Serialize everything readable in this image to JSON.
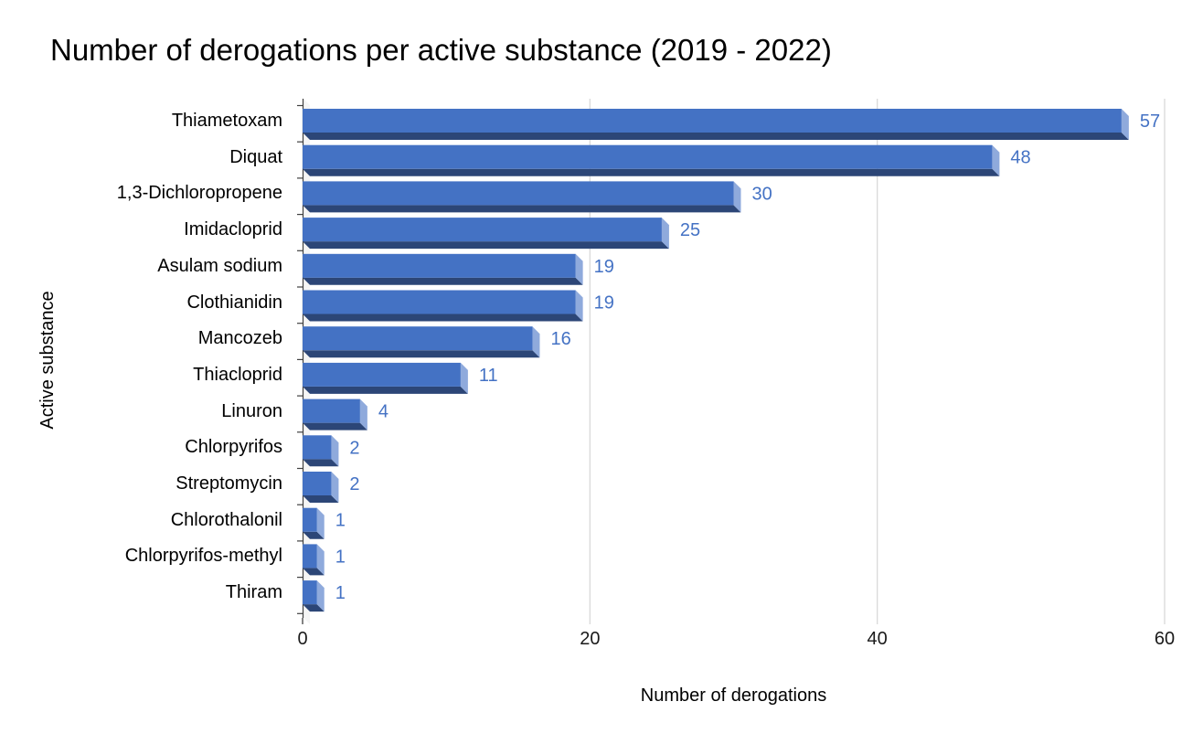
{
  "chart_data": {
    "type": "bar",
    "orientation": "horizontal",
    "style": "3d-bar",
    "title": "Number of derogations per active substance (2019 - 2022)",
    "xlabel": "Number of derogations",
    "ylabel": "Active substance",
    "categories": [
      "Thiametoxam",
      "Diquat",
      "1,3-Dichloropropene",
      "Imidacloprid",
      "Asulam sodium",
      "Clothianidin",
      "Mancozeb",
      "Thiacloprid",
      "Linuron",
      "Chlorpyrifos",
      "Streptomycin",
      "Chlorothalonil",
      "Chlorpyrifos-methyl",
      "Thiram"
    ],
    "values": [
      57,
      48,
      30,
      25,
      19,
      19,
      16,
      11,
      4,
      2,
      2,
      1,
      1,
      1
    ],
    "data_labels": [
      57,
      48,
      30,
      25,
      19,
      19,
      16,
      11,
      4,
      2,
      2,
      1,
      1,
      1
    ],
    "xticks": [
      0,
      20,
      40,
      60
    ],
    "xlim": [
      0,
      60
    ],
    "grid": true,
    "legend": false,
    "colors": {
      "bar_face": "#4472C4",
      "bar_cap": "#8FAADC",
      "bar_shadow": "#2C4677",
      "value_label": "#4472C4",
      "gridline": "#D9D9D9",
      "axis_line": "#404040",
      "wall": "#F5F5F5",
      "text": "#000000"
    }
  }
}
